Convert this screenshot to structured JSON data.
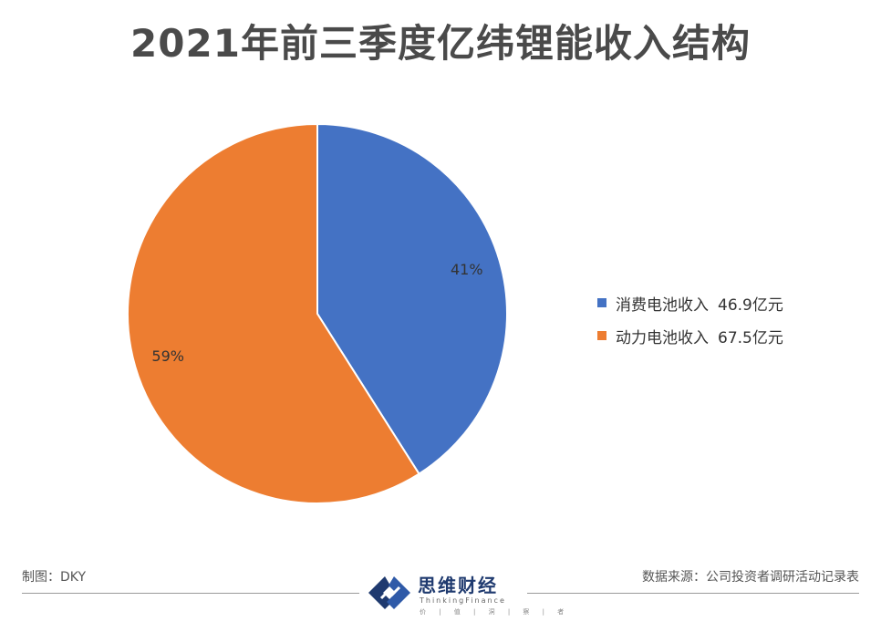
{
  "chart_data": {
    "type": "pie",
    "title": "2021年前三季度亿纬锂能收入结构",
    "slices": [
      {
        "name": "消费电池收入",
        "value": 46.9,
        "value_label": "46.9亿元",
        "percent_label": "41%",
        "color": "#4472C4"
      },
      {
        "name": "动力电池收入",
        "value": 67.5,
        "value_label": "67.5亿元",
        "percent_label": "59%",
        "color": "#ED7D31"
      }
    ],
    "legend_position": "right"
  },
  "footer": {
    "maker": "制图：DKY",
    "source": "数据来源：公司投资者调研活动记录表"
  },
  "logo": {
    "name_cn": "思维财经",
    "name_en": "ThinkingFinance",
    "sub": "价 | 值 | 洞 | 察 | 者",
    "icon": "thinking-finance-logo-icon"
  }
}
